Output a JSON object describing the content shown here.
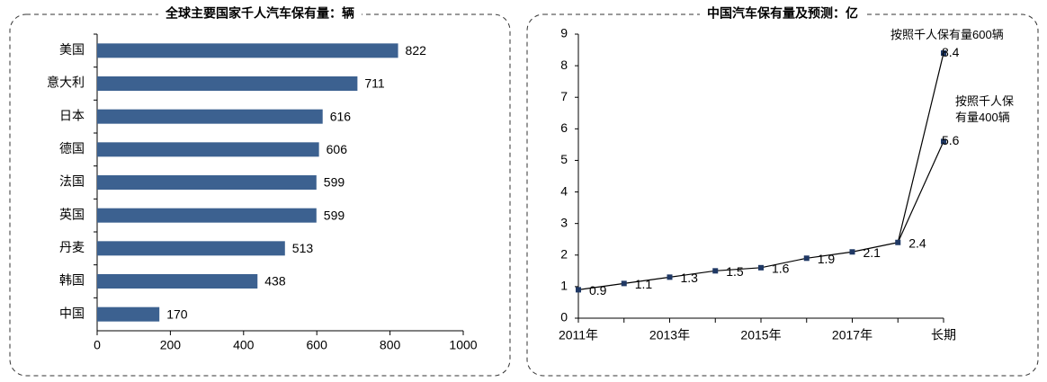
{
  "chart_data": [
    {
      "type": "barh",
      "title": "全球主要国家千人汽车保有量：辆",
      "categories": [
        "美国",
        "意大利",
        "日本",
        "德国",
        "法国",
        "英国",
        "丹麦",
        "韩国",
        "中国"
      ],
      "values": [
        822,
        711,
        616,
        606,
        599,
        599,
        513,
        438,
        170
      ],
      "color": "#3c6190",
      "xlim": [
        0,
        1000
      ],
      "xticks": [
        0,
        200,
        400,
        600,
        800,
        1000
      ]
    },
    {
      "type": "line",
      "title": "中国汽车保有量及预测：亿",
      "categories": [
        "2011年",
        null,
        "2013年",
        null,
        "2015年",
        null,
        "2017年",
        null,
        "长期"
      ],
      "series": [
        {
          "color": "#000000",
          "values": [
            0.9,
            1.1,
            1.3,
            1.5,
            1.6,
            1.9,
            2.1,
            2.4,
            null
          ]
        },
        {
          "name": "按照千人保有量600辆",
          "color": "#000000",
          "values": [
            null,
            null,
            null,
            null,
            null,
            null,
            null,
            2.4,
            8.4
          ]
        },
        {
          "name": "按照千人保有量400辆",
          "color": "#000000",
          "values": [
            null,
            null,
            null,
            null,
            null,
            null,
            null,
            2.4,
            5.6
          ]
        }
      ],
      "marker_color": "#1f3864",
      "ylim": [
        0,
        9
      ],
      "yticks": [
        0,
        1,
        2,
        3,
        4,
        5,
        6,
        7,
        8,
        9
      ]
    }
  ]
}
